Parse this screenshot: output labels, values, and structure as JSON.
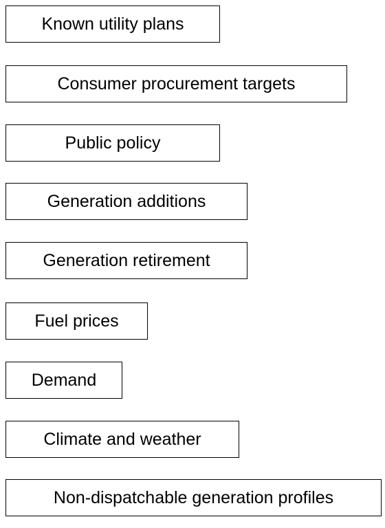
{
  "nodes": [
    {
      "label": "Known utility plans"
    },
    {
      "label": "Consumer procurement targets"
    },
    {
      "label": "Public policy"
    },
    {
      "label": "Generation additions"
    },
    {
      "label": "Generation retirement"
    },
    {
      "label": "Fuel prices"
    },
    {
      "label": "Demand"
    },
    {
      "label": "Climate and weather"
    },
    {
      "label": "Non-dispatchable generation profiles"
    }
  ]
}
